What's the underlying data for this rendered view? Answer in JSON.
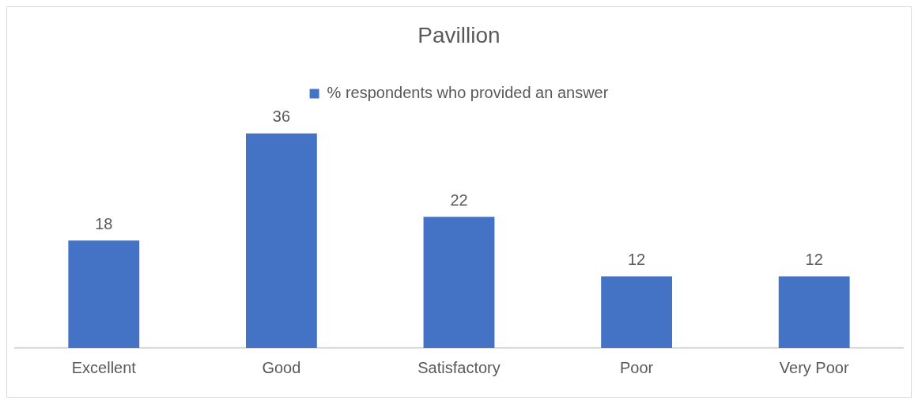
{
  "chart_data": {
    "type": "bar",
    "title": "Pavillion",
    "categories": [
      "Excellent",
      "Good",
      "Satisfactory",
      "Poor",
      "Very Poor"
    ],
    "series": [
      {
        "name": "% respondents who provided an answer",
        "color": "#4472c4",
        "values": [
          18,
          36,
          22,
          12,
          12
        ]
      }
    ],
    "data_labels": true,
    "legend": "top",
    "grid": false
  }
}
